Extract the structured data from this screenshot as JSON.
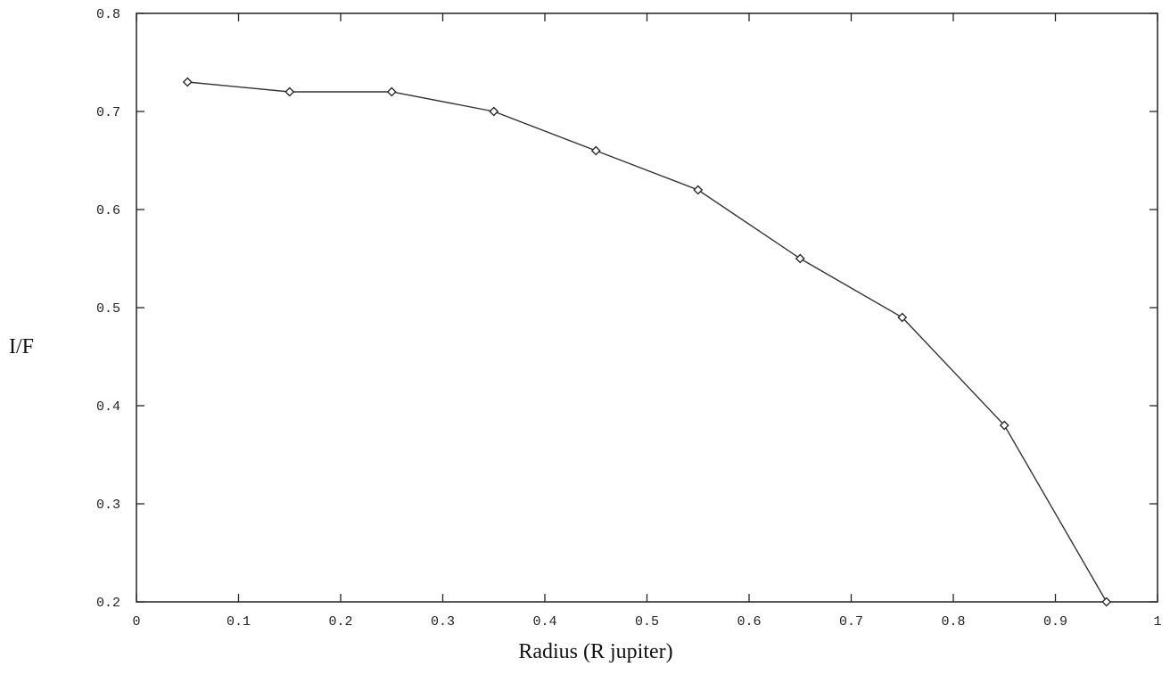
{
  "chart_data": {
    "type": "line",
    "title": "",
    "xlabel": "Radius (R jupiter)",
    "ylabel": "I/F",
    "xlim": [
      0,
      1
    ],
    "ylim": [
      0.2,
      0.8
    ],
    "xticks": [
      "0",
      "0.1",
      "0.2",
      "0.3",
      "0.4",
      "0.5",
      "0.6",
      "0.7",
      "0.8",
      "0.9",
      "1"
    ],
    "yticks": [
      "0.2",
      "0.3",
      "0.4",
      "0.5",
      "0.6",
      "0.7",
      "0.8"
    ],
    "grid": false,
    "marker": "diamond",
    "series": [
      {
        "x": [
          0.05,
          0.15,
          0.25,
          0.35,
          0.45,
          0.55,
          0.65,
          0.75,
          0.85,
          0.95
        ],
        "y": [
          0.73,
          0.72,
          0.72,
          0.7,
          0.66,
          0.62,
          0.55,
          0.49,
          0.38,
          0.2
        ]
      }
    ]
  }
}
